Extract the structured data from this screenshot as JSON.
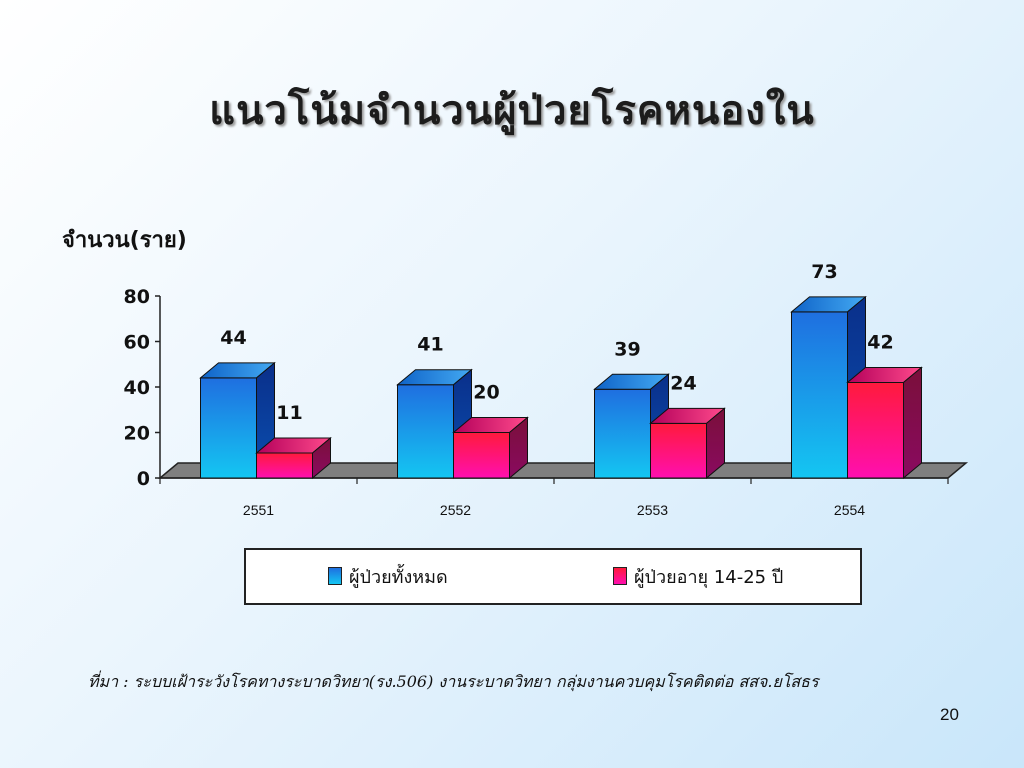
{
  "slide": {
    "title": "แนวโน้มจำนวนผู้ป่วยโรคหนองใน",
    "source_note": "ที่มา : ระบบเฝ้าระวังโรคทางระบาดวิทยา(รง.506) งานระบาดวิทยา กลุ่มงานควบคุมโรคติดต่อ สสจ.ยโสธร",
    "page_number": "20"
  },
  "chart_data": {
    "type": "bar",
    "title": "แนวโน้มจำนวนผู้ป่วยโรคหนองใน",
    "ylabel": "จำนวน(ราย)",
    "xlabel": "",
    "categories": [
      "2551",
      "2552",
      "2553",
      "2554"
    ],
    "series": [
      {
        "name": "ผู้ป่วยทั้งหมด",
        "values": [
          44,
          41,
          39,
          73
        ],
        "color": "#1a8fe6"
      },
      {
        "name": "ผู้ป่วยอายุ 14-25 ปี",
        "values": [
          11,
          20,
          24,
          42
        ],
        "color": "#f0127a"
      }
    ],
    "ylim": [
      0,
      80
    ],
    "yticks": [
      0,
      20,
      40,
      60,
      80
    ],
    "style": "3d-clustered-column",
    "grid": false,
    "legend_position": "bottom",
    "data_labels": true
  }
}
